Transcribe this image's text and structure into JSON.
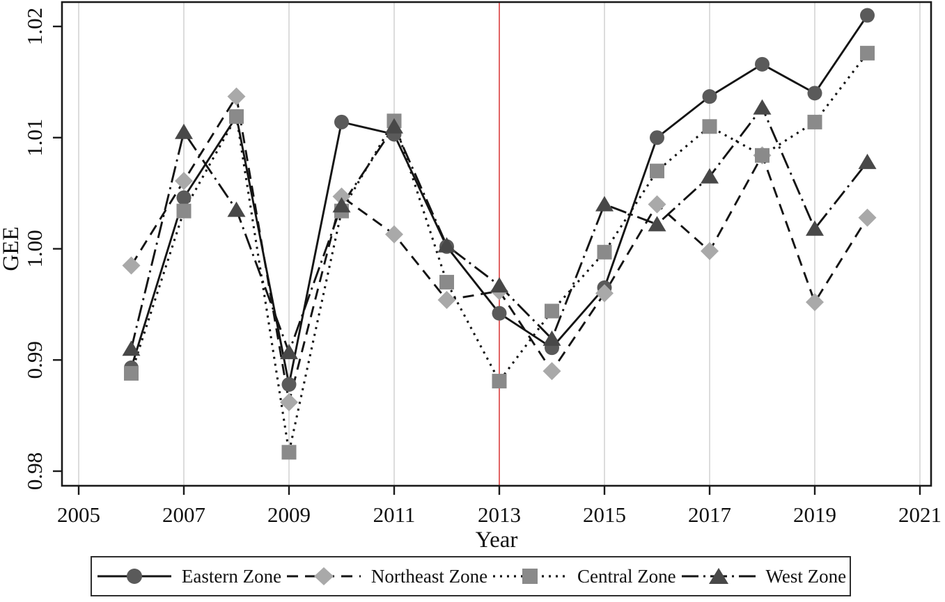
{
  "chart_data": {
    "type": "line",
    "title": "",
    "xlabel": "Year",
    "ylabel": "GEE",
    "x_ticks": [
      2005,
      2007,
      2009,
      2011,
      2013,
      2015,
      2017,
      2019,
      2021
    ],
    "y_ticks": [
      0.98,
      0.99,
      1.0,
      1.01,
      1.02
    ],
    "xlim": [
      2004.7,
      2021.2
    ],
    "ylim": [
      0.978,
      1.0222
    ],
    "grid": "vertical-only",
    "legend_position": "bottom",
    "reference_line": {
      "x": 2013,
      "color": "#e25757"
    },
    "x": [
      2006,
      2007,
      2008,
      2009,
      2010,
      2011,
      2012,
      2013,
      2014,
      2015,
      2016,
      2017,
      2018,
      2019,
      2020
    ],
    "series": [
      {
        "name": "Eastern Zone",
        "marker": "circle",
        "line_style": "solid",
        "marker_color": "#5a5a5a",
        "values": [
          0.9893,
          1.0046,
          1.0119,
          0.9878,
          1.0114,
          1.0103,
          1.0002,
          0.9942,
          0.9911,
          0.9965,
          1.01,
          1.0137,
          1.0166,
          1.014,
          1.021
        ]
      },
      {
        "name": "Northeast Zone",
        "marker": "diamond",
        "line_style": "dashed",
        "marker_color": "#a9a9a9",
        "values": [
          0.9985,
          1.0061,
          1.0137,
          0.9862,
          1.0047,
          1.0013,
          0.9954,
          0.9962,
          0.989,
          0.996,
          1.004,
          0.9998,
          1.0084,
          0.9952,
          1.0028
        ]
      },
      {
        "name": "Central Zone",
        "marker": "square",
        "line_style": "dotted",
        "marker_color": "#8a8a8a",
        "values": [
          0.9888,
          1.0034,
          1.0119,
          0.9817,
          1.0034,
          1.0115,
          0.997,
          0.9881,
          0.9944,
          0.9997,
          1.007,
          1.011,
          1.0084,
          1.0114,
          1.0176
        ]
      },
      {
        "name": "West Zone",
        "marker": "triangle",
        "line_style": "dashdot",
        "marker_color": "#484848",
        "values": [
          0.991,
          1.0105,
          1.0035,
          0.9907,
          1.0039,
          1.011,
          1.0003,
          0.9967,
          0.9919,
          1.004,
          1.0022,
          1.0065,
          1.0127,
          1.0018,
          1.0078
        ]
      }
    ],
    "line_color": "#141414",
    "gridline_color": "#dcdcdc",
    "axis_color": "#1a1a1a"
  }
}
